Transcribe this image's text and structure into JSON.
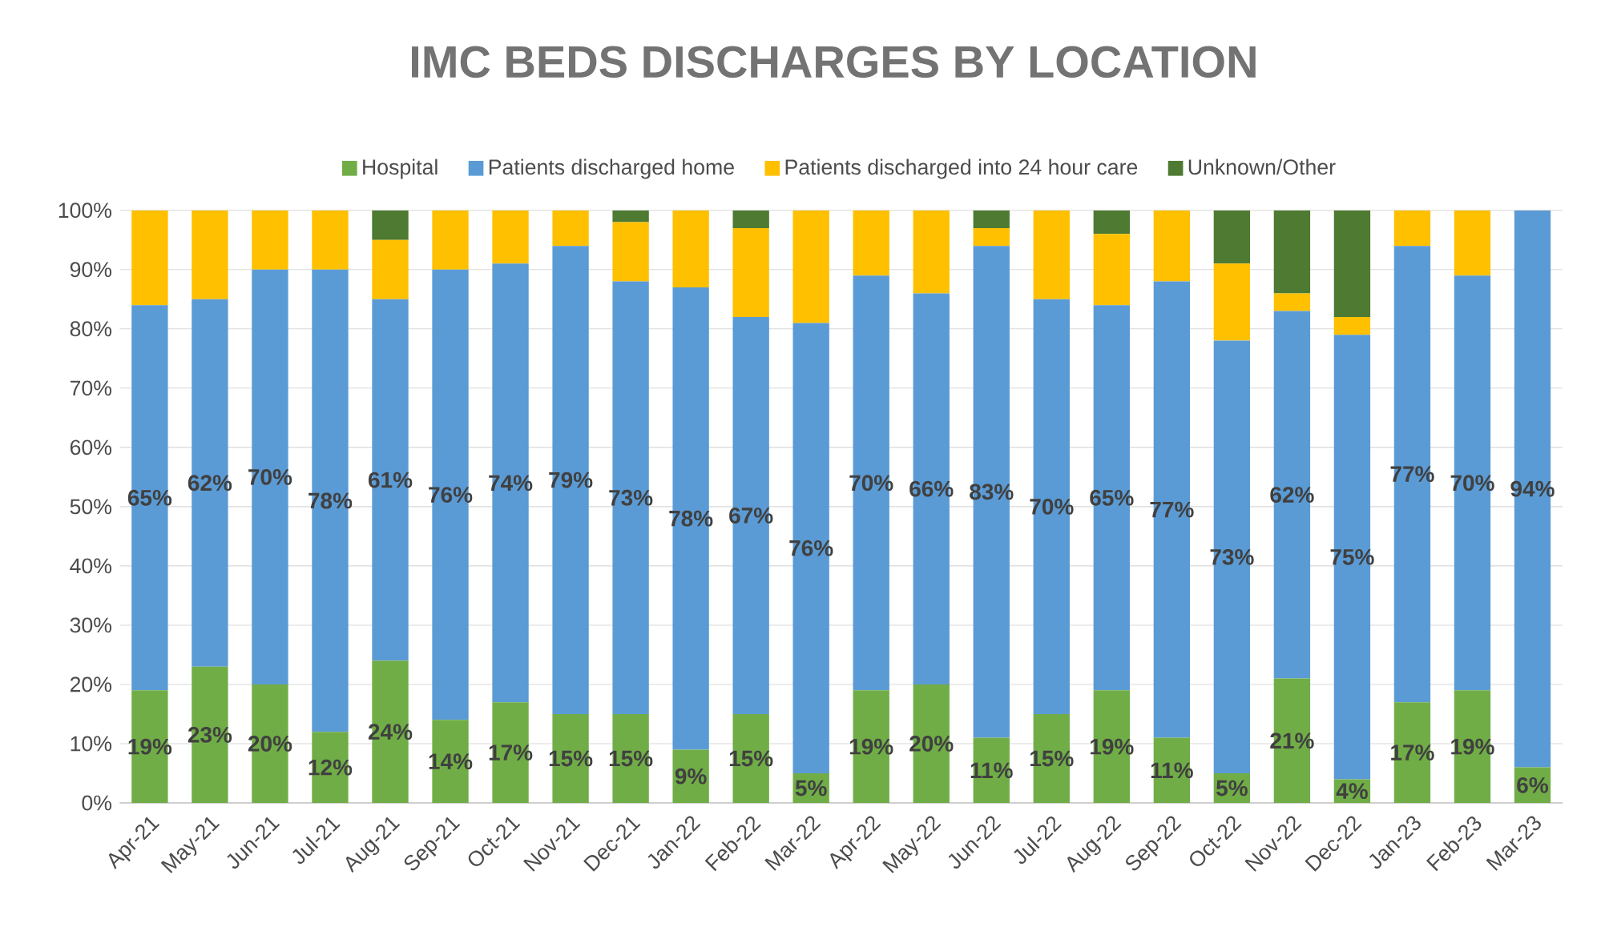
{
  "chart_data": {
    "type": "bar",
    "title": "IMC BEDS DISCHARGES BY LOCATION",
    "stacked": true,
    "categories": [
      "Apr-21",
      "May-21",
      "Jun-21",
      "Jul-21",
      "Aug-21",
      "Sep-21",
      "Oct-21",
      "Nov-21",
      "Dec-21",
      "Jan-22",
      "Feb-22",
      "Mar-22",
      "Apr-22",
      "May-22",
      "Jun-22",
      "Jul-22",
      "Aug-22",
      "Sep-22",
      "Oct-22",
      "Nov-22",
      "Dec-22",
      "Jan-23",
      "Feb-23",
      "Mar-23"
    ],
    "series": [
      {
        "name": "Hospital",
        "color": "#70ad47",
        "values": [
          19,
          23,
          20,
          12,
          24,
          14,
          17,
          15,
          15,
          9,
          15,
          5,
          19,
          20,
          11,
          15,
          19,
          11,
          5,
          21,
          4,
          17,
          19,
          6
        ],
        "value_labels": [
          "19%",
          "23%",
          "20%",
          "12%",
          "24%",
          "14%",
          "17%",
          "15%",
          "15%",
          "9%",
          "15%",
          "5%",
          "19%",
          "20%",
          "11%",
          "15%",
          "19%",
          "11%",
          "5%",
          "21%",
          "4%",
          "17%",
          "19%",
          "6%"
        ]
      },
      {
        "name": "Patients discharged home",
        "color": "#5b9bd5",
        "values": [
          65,
          62,
          70,
          78,
          61,
          76,
          74,
          79,
          73,
          78,
          67,
          76,
          70,
          66,
          83,
          70,
          65,
          77,
          73,
          62,
          75,
          77,
          70,
          94
        ],
        "value_labels": [
          "65%",
          "62%",
          "70%",
          "78%",
          "61%",
          "76%",
          "74%",
          "79%",
          "73%",
          "78%",
          "67%",
          "76%",
          "70%",
          "66%",
          "83%",
          "70%",
          "65%",
          "77%",
          "73%",
          "62%",
          "75%",
          "77%",
          "70%",
          "94%"
        ]
      },
      {
        "name": "Patients discharged into 24 hour care",
        "color": "#ffc000",
        "values": [
          16,
          15,
          10,
          10,
          10,
          10,
          9,
          6,
          10,
          13,
          15,
          19,
          11,
          14,
          3,
          15,
          12,
          12,
          13,
          3,
          3,
          6,
          11,
          0
        ]
      },
      {
        "name": "Unknown/Other",
        "color": "#4e7a31",
        "values": [
          0,
          0,
          0,
          0,
          5,
          0,
          0,
          0,
          2,
          0,
          3,
          0,
          0,
          0,
          3,
          0,
          4,
          0,
          9,
          14,
          18,
          0,
          0,
          0
        ]
      }
    ],
    "ylim": [
      0,
      100
    ],
    "yticks": [
      {
        "value": 0,
        "label": "0%"
      },
      {
        "value": 10,
        "label": "10%"
      },
      {
        "value": 20,
        "label": "20%"
      },
      {
        "value": 30,
        "label": "30%"
      },
      {
        "value": 40,
        "label": "40%"
      },
      {
        "value": 50,
        "label": "50%"
      },
      {
        "value": 60,
        "label": "60%"
      },
      {
        "value": 70,
        "label": "70%"
      },
      {
        "value": 80,
        "label": "80%"
      },
      {
        "value": 90,
        "label": "90%"
      },
      {
        "value": 100,
        "label": "100%"
      }
    ],
    "grid": "y",
    "legend": "top"
  }
}
